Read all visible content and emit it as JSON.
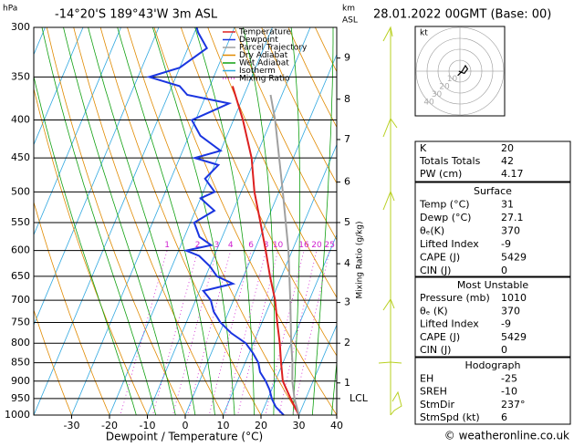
{
  "header": {
    "pressure_unit": "hPa",
    "location": "-14°20'S 189°43'W 3m ASL",
    "km_unit": "km",
    "km_ref": "ASL",
    "datetime": "28.01.2022 00GMT (Base: 00)"
  },
  "chart_data": [
    {
      "type": "skewt",
      "x_label": "Dewpoint / Temperature (°C)",
      "y2_label": "Mixing Ratio (g/kg)",
      "xlim": [
        -40,
        40
      ],
      "xticks": [
        -30,
        -20,
        -10,
        0,
        10,
        20,
        30,
        40
      ],
      "ylim": [
        1000,
        300
      ],
      "yticks": [
        300,
        350,
        400,
        450,
        500,
        550,
        600,
        650,
        700,
        750,
        800,
        850,
        900,
        950,
        1000
      ],
      "log_scale": true,
      "km_ticks": [
        1,
        2,
        3,
        4,
        5,
        6,
        7,
        8,
        9
      ],
      "km_pressure": [
        905,
        800,
        705,
        625,
        550,
        485,
        425,
        375,
        330
      ],
      "lcl_label": "LCL",
      "lcl_pressure": 950,
      "mixing_ratio_labels": [
        1,
        2,
        3,
        4,
        6,
        8,
        10,
        16,
        20,
        25
      ],
      "series": [
        {
          "name": "Temperature",
          "color": "#dd2020",
          "pressure": [
            1000,
            950,
            900,
            850,
            800,
            750,
            700,
            650,
            600,
            550,
            500,
            450,
            400,
            360
          ],
          "values": [
            30,
            26,
            22,
            19.5,
            17,
            14,
            11,
            7,
            3,
            -1.5,
            -6.5,
            -11,
            -17.5,
            -24
          ]
        },
        {
          "name": "Dewpoint",
          "color": "#1a35e0",
          "pressure": [
            1000,
            975,
            950,
            925,
            900,
            875,
            850,
            825,
            800,
            775,
            750,
            725,
            700,
            680,
            665,
            650,
            630,
            610,
            600,
            590,
            575,
            550,
            530,
            510,
            500,
            480,
            460,
            450,
            440,
            420,
            400,
            390,
            380,
            370,
            360,
            350,
            340,
            320,
            305,
            300
          ],
          "values": [
            26,
            23,
            21,
            19.5,
            17.5,
            15,
            13.5,
            11,
            8,
            3,
            -1,
            -4,
            -6,
            -9,
            -2,
            -7,
            -10,
            -14,
            -18,
            -12,
            -16,
            -19,
            -15,
            -20,
            -17,
            -21,
            -19,
            -26,
            -20,
            -27,
            -31,
            -27,
            -23,
            -35,
            -38,
            -47,
            -40,
            -35,
            -39,
            -40
          ]
        },
        {
          "name": "Parcel Trajectory",
          "color": "#a0a0a0",
          "pressure": [
            1000,
            950,
            900,
            850,
            800,
            700,
            600,
            500,
            400,
            370
          ],
          "values": [
            30,
            27,
            24.5,
            22.5,
            20,
            15,
            9,
            1,
            -9,
            -13
          ]
        }
      ],
      "reference_lines": [
        {
          "name": "Dry Adiabat",
          "color": "#e08a00"
        },
        {
          "name": "Wet Adiabat",
          "color": "#10a010"
        },
        {
          "name": "Isotherm",
          "color": "#30a8e0"
        },
        {
          "name": "Mixing Ratio",
          "color": "#d020d0"
        }
      ]
    },
    {
      "type": "hodograph",
      "unit": "kt",
      "rings": [
        10,
        20,
        30,
        40
      ],
      "u": [
        -1,
        1,
        2.5,
        3.5,
        2,
        0.5,
        -0.5
      ],
      "v": [
        -2,
        0,
        2.5,
        1,
        -1,
        -0.5,
        0
      ]
    }
  ],
  "tables": [
    {
      "rows": [
        [
          "K",
          "20"
        ],
        [
          "Totals Totals",
          "42"
        ],
        [
          "PW (cm)",
          "4.17"
        ]
      ]
    },
    {
      "title": "Surface",
      "rows": [
        [
          "Temp (°C)",
          "31"
        ],
        [
          "Dewp (°C)",
          "27.1"
        ],
        [
          "θₑ(K)",
          "370"
        ],
        [
          "Lifted Index",
          "-9"
        ],
        [
          "CAPE (J)",
          "5429"
        ],
        [
          "CIN (J)",
          "0"
        ]
      ]
    },
    {
      "title": "Most Unstable",
      "rows": [
        [
          "Pressure (mb)",
          "1010"
        ],
        [
          "θₑ (K)",
          "370"
        ],
        [
          "Lifted Index",
          "-9"
        ],
        [
          "CAPE (J)",
          "5429"
        ],
        [
          "CIN (J)",
          "0"
        ]
      ]
    },
    {
      "title": "Hodograph",
      "rows": [
        [
          "EH",
          "-25"
        ],
        [
          "SREH",
          "-10"
        ],
        [
          "StmDir",
          "237°"
        ],
        [
          "StmSpd (kt)",
          "6"
        ]
      ]
    }
  ],
  "footer": "© weatheronline.co.uk"
}
